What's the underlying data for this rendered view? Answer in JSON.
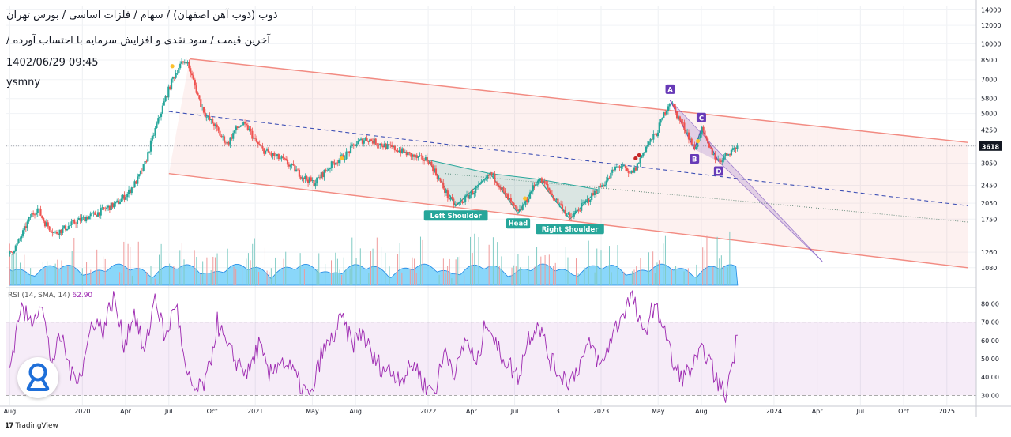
{
  "header": {
    "line1": "ذوب (ذوب آهن اصفهان) / سهام / فلزات اساسی / بورس تهران",
    "line2": "آخرین قیمت / سود نقدی و افزایش سرمایه با احتساب آورده /",
    "datetime": "1402/06/29 09:45",
    "author": "ysmny"
  },
  "footer": {
    "brand_mark": "17",
    "brand": "TradingView"
  },
  "colors": {
    "up": "#26a69a",
    "down": "#ef5350",
    "channel": "#f28b82",
    "rsi": "#9c27b0",
    "pattern": "#26a69a",
    "abcd": "#673ab7"
  },
  "chart_data": [
    {
      "type": "line",
      "subtype": "candlestick",
      "title": "ذوب (ذوب آهن اصفهان) / سهام / فلزات اساسی / بورس تهران",
      "yscale": "log",
      "ylim": [
        900,
        14500
      ],
      "ytick_labels": [
        "14000",
        "12000",
        "10000",
        "8500",
        "7000",
        "5800",
        "5000",
        "4250",
        "3618",
        "3050",
        "2450",
        "2050",
        "1750",
        "1260",
        "1080"
      ],
      "xtick_labels": [
        "Aug",
        "2020",
        "Apr",
        "Jul",
        "Oct",
        "2021",
        "May",
        "Aug",
        "2022",
        "Apr",
        "Jul",
        "3",
        "2023",
        "May",
        "Aug",
        "2024",
        "Apr",
        "Jul",
        "Oct",
        "2025"
      ],
      "xtick_dates": [
        2019.58,
        2020.0,
        2020.25,
        2020.5,
        2020.75,
        2021.0,
        2021.33,
        2021.58,
        2022.0,
        2022.25,
        2022.5,
        2022.75,
        2023.0,
        2023.33,
        2023.58,
        2024.0,
        2024.25,
        2024.5,
        2024.75,
        2025.0
      ],
      "last_price": 3618,
      "price_path": [
        [
          2019.58,
          1240
        ],
        [
          2019.62,
          1350
        ],
        [
          2019.66,
          1550
        ],
        [
          2019.7,
          1800
        ],
        [
          2019.74,
          1950
        ],
        [
          2019.78,
          1700
        ],
        [
          2019.84,
          1520
        ],
        [
          2019.9,
          1600
        ],
        [
          2019.96,
          1700
        ],
        [
          2020.02,
          1780
        ],
        [
          2020.08,
          1850
        ],
        [
          2020.14,
          1950
        ],
        [
          2020.2,
          2050
        ],
        [
          2020.26,
          2250
        ],
        [
          2020.32,
          2600
        ],
        [
          2020.36,
          3000
        ],
        [
          2020.4,
          3800
        ],
        [
          2020.44,
          4700
        ],
        [
          2020.48,
          5800
        ],
        [
          2020.52,
          7000
        ],
        [
          2020.56,
          8000
        ],
        [
          2020.6,
          8500
        ],
        [
          2020.64,
          7000
        ],
        [
          2020.68,
          5600
        ],
        [
          2020.72,
          4800
        ],
        [
          2020.76,
          4500
        ],
        [
          2020.8,
          4000
        ],
        [
          2020.84,
          3700
        ],
        [
          2020.88,
          4200
        ],
        [
          2020.92,
          4500
        ],
        [
          2020.96,
          4300
        ],
        [
          2021.0,
          3800
        ],
        [
          2021.04,
          3500
        ],
        [
          2021.1,
          3300
        ],
        [
          2021.16,
          3150
        ],
        [
          2021.22,
          2900
        ],
        [
          2021.28,
          2650
        ],
        [
          2021.34,
          2500
        ],
        [
          2021.4,
          2800
        ],
        [
          2021.46,
          3100
        ],
        [
          2021.52,
          3300
        ],
        [
          2021.58,
          3700
        ],
        [
          2021.64,
          3900
        ],
        [
          2021.7,
          3750
        ],
        [
          2021.76,
          3600
        ],
        [
          2021.82,
          3500
        ],
        [
          2021.88,
          3350
        ],
        [
          2021.94,
          3200
        ],
        [
          2022.0,
          3150
        ],
        [
          2022.04,
          2800
        ],
        [
          2022.08,
          2450
        ],
        [
          2022.12,
          2150
        ],
        [
          2022.16,
          2000
        ],
        [
          2022.2,
          2100
        ],
        [
          2022.26,
          2300
        ],
        [
          2022.32,
          2500
        ],
        [
          2022.36,
          2750
        ],
        [
          2022.4,
          2550
        ],
        [
          2022.44,
          2250
        ],
        [
          2022.48,
          2050
        ],
        [
          2022.52,
          1850
        ],
        [
          2022.56,
          2050
        ],
        [
          2022.6,
          2350
        ],
        [
          2022.64,
          2600
        ],
        [
          2022.68,
          2450
        ],
        [
          2022.72,
          2200
        ],
        [
          2022.78,
          1950
        ],
        [
          2022.82,
          1750
        ],
        [
          2022.86,
          1900
        ],
        [
          2022.92,
          2100
        ],
        [
          2022.98,
          2350
        ],
        [
          2023.04,
          2600
        ],
        [
          2023.08,
          2900
        ],
        [
          2023.12,
          3000
        ],
        [
          2023.16,
          2700
        ],
        [
          2023.2,
          2900
        ],
        [
          2023.26,
          3600
        ],
        [
          2023.32,
          4100
        ],
        [
          2023.36,
          4900
        ],
        [
          2023.4,
          5700
        ],
        [
          2023.44,
          4900
        ],
        [
          2023.5,
          4100
        ],
        [
          2023.54,
          3500
        ],
        [
          2023.58,
          4300
        ],
        [
          2023.62,
          3600
        ],
        [
          2023.66,
          3250
        ],
        [
          2023.68,
          3100
        ],
        [
          2023.72,
          3300
        ],
        [
          2023.76,
          3500
        ],
        [
          2023.79,
          3618
        ]
      ],
      "channel": {
        "upper": [
          [
            2020.62,
            8600
          ],
          [
            2025.12,
            3750
          ]
        ],
        "lower": [
          [
            2020.5,
            2750
          ],
          [
            2025.12,
            1080
          ]
        ],
        "median": [
          [
            2020.5,
            5100
          ],
          [
            2025.12,
            2000
          ]
        ]
      },
      "support_line": [
        [
          2022.1,
          2750
        ],
        [
          2025.12,
          1700
        ]
      ],
      "head_and_shoulders": [
        {
          "label": "Left Shoulder",
          "date": 2022.16,
          "price": 2000
        },
        {
          "label": "Head",
          "date": 2022.52,
          "price": 1850
        },
        {
          "label": "Right Shoulder",
          "date": 2022.82,
          "price": 1750
        }
      ],
      "abcd": [
        {
          "label": "A",
          "date": 2023.4,
          "price": 5700
        },
        {
          "label": "B",
          "date": 2023.54,
          "price": 3500
        },
        {
          "label": "C",
          "date": 2023.58,
          "price": 4300
        },
        {
          "label": "D",
          "date": 2023.68,
          "price": 3100
        }
      ],
      "projection": [
        [
          2023.4,
          5700
        ],
        [
          2024.28,
          1150
        ]
      ],
      "events": [
        {
          "date": 2020.52,
          "price": 8000,
          "kind": "dividend"
        },
        {
          "date": 2021.5,
          "price": 3200,
          "kind": "dividend"
        },
        {
          "date": 2022.56,
          "price": 2150,
          "kind": "dividend"
        },
        {
          "date": 2023.2,
          "price": 3200,
          "kind": "split"
        },
        {
          "date": 2023.22,
          "price": 3300,
          "kind": "split"
        },
        {
          "date": 2023.56,
          "price": 3800,
          "kind": "dividend"
        }
      ]
    },
    {
      "type": "line",
      "title": "RSI",
      "legend_label": "RSI (14, SMA, 14)",
      "legend_value": "62.90",
      "ylim": [
        25,
        88
      ],
      "ytick_labels": [
        "80.00",
        "70.00",
        "60.00",
        "50.00",
        "40.00",
        "30.00"
      ],
      "band": [
        30,
        70
      ],
      "x": [
        2019.58,
        2019.64,
        2019.7,
        2019.76,
        2019.82,
        2019.88,
        2019.94,
        2020.0,
        2020.06,
        2020.12,
        2020.18,
        2020.24,
        2020.3,
        2020.36,
        2020.42,
        2020.48,
        2020.54,
        2020.6,
        2020.66,
        2020.72,
        2020.78,
        2020.84,
        2020.9,
        2020.96,
        2021.02,
        2021.08,
        2021.14,
        2021.2,
        2021.26,
        2021.32,
        2021.38,
        2021.44,
        2021.5,
        2021.56,
        2021.62,
        2021.68,
        2021.74,
        2021.8,
        2021.86,
        2021.92,
        2021.98,
        2022.04,
        2022.1,
        2022.16,
        2022.22,
        2022.28,
        2022.34,
        2022.4,
        2022.46,
        2022.52,
        2022.58,
        2022.64,
        2022.7,
        2022.76,
        2022.82,
        2022.88,
        2022.94,
        2023.0,
        2023.06,
        2023.12,
        2023.18,
        2023.24,
        2023.3,
        2023.36,
        2023.42,
        2023.48,
        2023.54,
        2023.6,
        2023.66,
        2023.72,
        2023.79
      ],
      "values": [
        45,
        78,
        70,
        82,
        48,
        62,
        40,
        44,
        72,
        66,
        84,
        58,
        76,
        52,
        85,
        60,
        82,
        40,
        32,
        38,
        70,
        55,
        48,
        42,
        58,
        40,
        50,
        45,
        36,
        28,
        52,
        60,
        72,
        58,
        65,
        50,
        45,
        42,
        40,
        48,
        35,
        33,
        55,
        42,
        62,
        45,
        73,
        55,
        48,
        40,
        62,
        70,
        50,
        42,
        38,
        48,
        58,
        45,
        62,
        74,
        85,
        62,
        78,
        70,
        45,
        40,
        47,
        55,
        40,
        30,
        62.9
      ]
    }
  ]
}
